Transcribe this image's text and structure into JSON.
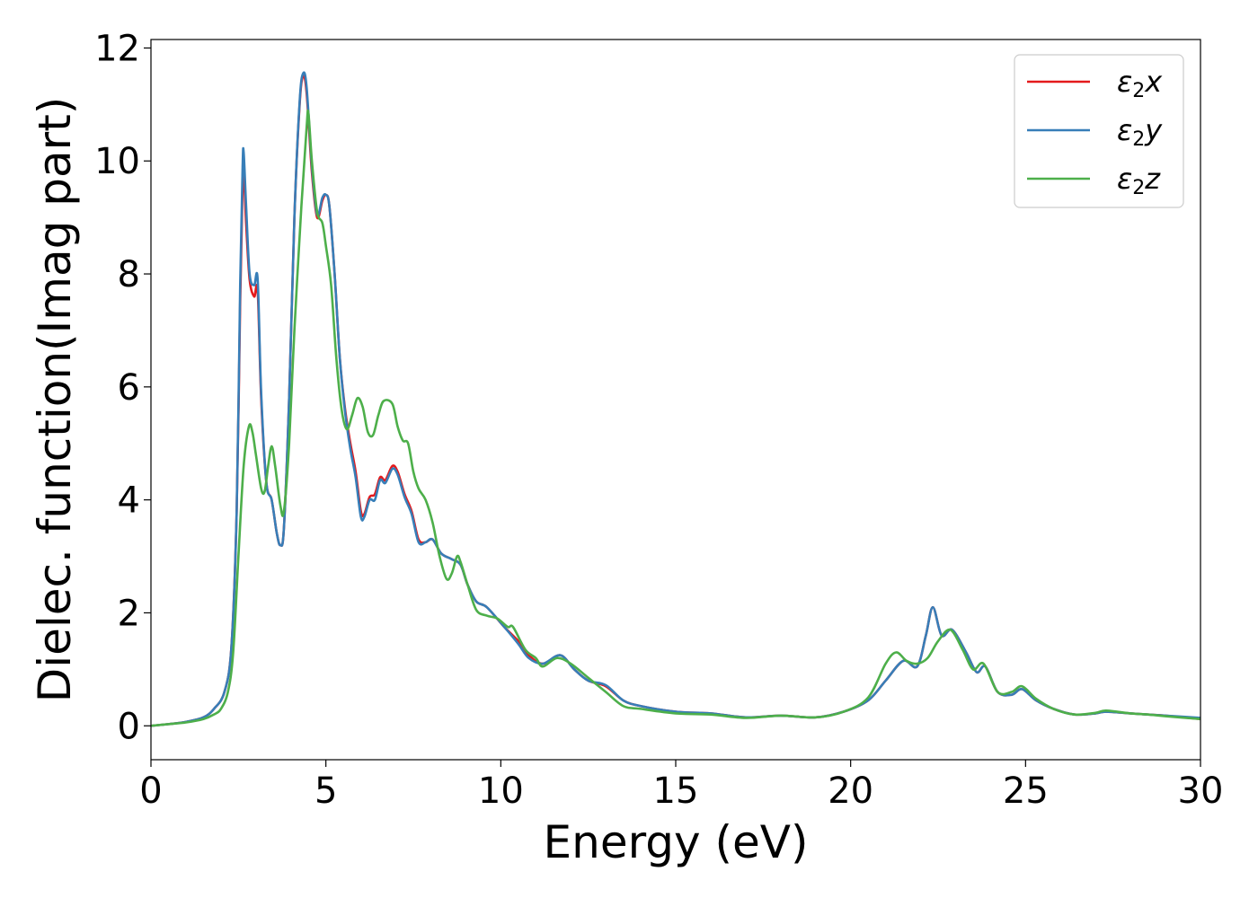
{
  "chart_data": {
    "type": "line",
    "xlabel": "Energy (eV)",
    "ylabel": "Dielec. function(Imag part)",
    "xlim": [
      0,
      30
    ],
    "ylim": [
      -0.6,
      12.15
    ],
    "xticks": [
      0,
      5,
      10,
      15,
      20,
      25,
      30
    ],
    "xtick_labels": [
      "0",
      "5",
      "10",
      "15",
      "20",
      "25",
      "30"
    ],
    "yticks": [
      0,
      2,
      4,
      6,
      8,
      10,
      12
    ],
    "ytick_labels": [
      "0",
      "2",
      "4",
      "6",
      "8",
      "10",
      "12"
    ],
    "grid": false,
    "legend_position": "top-right",
    "series": [
      {
        "name": "ε₂x",
        "legend_base": "ε",
        "legend_sub": "2",
        "legend_var": "x",
        "color": "#e41a1c",
        "points": [
          [
            0,
            0
          ],
          [
            0.5,
            0.03
          ],
          [
            1,
            0.07
          ],
          [
            1.5,
            0.15
          ],
          [
            1.8,
            0.3
          ],
          [
            2.1,
            0.6
          ],
          [
            2.3,
            1.4
          ],
          [
            2.45,
            3.8
          ],
          [
            2.55,
            7.5
          ],
          [
            2.62,
            9.6
          ],
          [
            2.65,
            9.9
          ],
          [
            2.72,
            8.9
          ],
          [
            2.82,
            7.9
          ],
          [
            2.95,
            7.6
          ],
          [
            3.05,
            7.7
          ],
          [
            3.15,
            5.8
          ],
          [
            3.3,
            4.3
          ],
          [
            3.45,
            4.0
          ],
          [
            3.6,
            3.4
          ],
          [
            3.7,
            3.2
          ],
          [
            3.8,
            3.5
          ],
          [
            3.95,
            5.8
          ],
          [
            4.1,
            9.0
          ],
          [
            4.25,
            11.0
          ],
          [
            4.35,
            11.5
          ],
          [
            4.45,
            11.2
          ],
          [
            4.6,
            9.8
          ],
          [
            4.75,
            9.0
          ],
          [
            4.9,
            9.3
          ],
          [
            5.0,
            9.4
          ],
          [
            5.1,
            9.2
          ],
          [
            5.25,
            8.0
          ],
          [
            5.4,
            6.5
          ],
          [
            5.55,
            5.6
          ],
          [
            5.7,
            5.0
          ],
          [
            5.85,
            4.5
          ],
          [
            6.0,
            3.8
          ],
          [
            6.1,
            3.75
          ],
          [
            6.25,
            4.05
          ],
          [
            6.4,
            4.1
          ],
          [
            6.55,
            4.4
          ],
          [
            6.7,
            4.35
          ],
          [
            6.9,
            4.6
          ],
          [
            7.05,
            4.5
          ],
          [
            7.25,
            4.1
          ],
          [
            7.45,
            3.8
          ],
          [
            7.65,
            3.3
          ],
          [
            7.85,
            3.25
          ],
          [
            8.05,
            3.3
          ],
          [
            8.3,
            3.05
          ],
          [
            8.6,
            2.95
          ],
          [
            8.85,
            2.85
          ],
          [
            9.05,
            2.5
          ],
          [
            9.3,
            2.2
          ],
          [
            9.6,
            2.1
          ],
          [
            10.1,
            1.75
          ],
          [
            10.5,
            1.5
          ],
          [
            10.8,
            1.25
          ],
          [
            11.2,
            1.1
          ],
          [
            11.7,
            1.25
          ],
          [
            12.1,
            1.0
          ],
          [
            12.5,
            0.8
          ],
          [
            13.0,
            0.7
          ],
          [
            13.5,
            0.45
          ],
          [
            14.0,
            0.35
          ],
          [
            15.0,
            0.25
          ],
          [
            16.0,
            0.22
          ],
          [
            17.0,
            0.15
          ],
          [
            18.0,
            0.18
          ],
          [
            19.0,
            0.15
          ],
          [
            19.8,
            0.25
          ],
          [
            20.5,
            0.45
          ],
          [
            21.0,
            0.8
          ],
          [
            21.5,
            1.15
          ],
          [
            21.9,
            1.05
          ],
          [
            22.15,
            1.6
          ],
          [
            22.35,
            2.1
          ],
          [
            22.6,
            1.6
          ],
          [
            22.9,
            1.7
          ],
          [
            23.3,
            1.3
          ],
          [
            23.6,
            0.95
          ],
          [
            23.85,
            1.05
          ],
          [
            24.2,
            0.6
          ],
          [
            24.6,
            0.55
          ],
          [
            24.9,
            0.65
          ],
          [
            25.3,
            0.45
          ],
          [
            25.8,
            0.3
          ],
          [
            26.4,
            0.2
          ],
          [
            27.0,
            0.22
          ],
          [
            27.3,
            0.25
          ],
          [
            28.0,
            0.22
          ],
          [
            28.5,
            0.2
          ],
          [
            29.0,
            0.18
          ],
          [
            30,
            0.12
          ]
        ]
      },
      {
        "name": "ε₂y",
        "legend_base": "ε",
        "legend_sub": "2",
        "legend_var": "y",
        "color": "#377eb8",
        "points": [
          [
            0,
            0
          ],
          [
            0.5,
            0.03
          ],
          [
            1,
            0.07
          ],
          [
            1.5,
            0.15
          ],
          [
            1.8,
            0.3
          ],
          [
            2.1,
            0.6
          ],
          [
            2.3,
            1.4
          ],
          [
            2.45,
            3.8
          ],
          [
            2.55,
            7.8
          ],
          [
            2.62,
            9.9
          ],
          [
            2.65,
            10.15
          ],
          [
            2.72,
            9.2
          ],
          [
            2.82,
            8.0
          ],
          [
            2.95,
            7.8
          ],
          [
            3.05,
            7.9
          ],
          [
            3.15,
            5.9
          ],
          [
            3.3,
            4.3
          ],
          [
            3.45,
            4.0
          ],
          [
            3.6,
            3.4
          ],
          [
            3.7,
            3.2
          ],
          [
            3.8,
            3.5
          ],
          [
            3.95,
            5.8
          ],
          [
            4.1,
            9.0
          ],
          [
            4.25,
            11.05
          ],
          [
            4.35,
            11.55
          ],
          [
            4.45,
            11.3
          ],
          [
            4.6,
            9.9
          ],
          [
            4.75,
            9.05
          ],
          [
            4.9,
            9.35
          ],
          [
            5.0,
            9.4
          ],
          [
            5.1,
            9.2
          ],
          [
            5.25,
            8.0
          ],
          [
            5.4,
            6.5
          ],
          [
            5.55,
            5.55
          ],
          [
            5.7,
            4.9
          ],
          [
            5.85,
            4.4
          ],
          [
            6.0,
            3.7
          ],
          [
            6.1,
            3.7
          ],
          [
            6.25,
            4.0
          ],
          [
            6.4,
            4.0
          ],
          [
            6.55,
            4.35
          ],
          [
            6.7,
            4.3
          ],
          [
            6.9,
            4.55
          ],
          [
            7.05,
            4.45
          ],
          [
            7.25,
            4.05
          ],
          [
            7.45,
            3.75
          ],
          [
            7.65,
            3.25
          ],
          [
            7.85,
            3.25
          ],
          [
            8.05,
            3.3
          ],
          [
            8.3,
            3.05
          ],
          [
            8.6,
            2.95
          ],
          [
            8.85,
            2.85
          ],
          [
            9.05,
            2.5
          ],
          [
            9.3,
            2.2
          ],
          [
            9.6,
            2.1
          ],
          [
            10.1,
            1.75
          ],
          [
            10.5,
            1.45
          ],
          [
            10.8,
            1.2
          ],
          [
            11.2,
            1.1
          ],
          [
            11.7,
            1.25
          ],
          [
            12.1,
            1.0
          ],
          [
            12.5,
            0.8
          ],
          [
            13.0,
            0.72
          ],
          [
            13.5,
            0.45
          ],
          [
            14.0,
            0.35
          ],
          [
            15.0,
            0.25
          ],
          [
            16.0,
            0.22
          ],
          [
            17.0,
            0.15
          ],
          [
            18.0,
            0.18
          ],
          [
            19.0,
            0.15
          ],
          [
            19.8,
            0.25
          ],
          [
            20.5,
            0.45
          ],
          [
            21.0,
            0.8
          ],
          [
            21.5,
            1.15
          ],
          [
            21.9,
            1.05
          ],
          [
            22.15,
            1.6
          ],
          [
            22.35,
            2.1
          ],
          [
            22.6,
            1.6
          ],
          [
            22.9,
            1.7
          ],
          [
            23.3,
            1.3
          ],
          [
            23.6,
            0.95
          ],
          [
            23.85,
            1.05
          ],
          [
            24.2,
            0.6
          ],
          [
            24.6,
            0.55
          ],
          [
            24.9,
            0.65
          ],
          [
            25.3,
            0.45
          ],
          [
            25.8,
            0.3
          ],
          [
            26.4,
            0.2
          ],
          [
            27.0,
            0.22
          ],
          [
            27.3,
            0.25
          ],
          [
            28.0,
            0.22
          ],
          [
            28.5,
            0.2
          ],
          [
            29.0,
            0.18
          ],
          [
            30,
            0.14
          ]
        ]
      },
      {
        "name": "ε₂z",
        "legend_base": "ε",
        "legend_sub": "2",
        "legend_var": "z",
        "color": "#4daf4a",
        "points": [
          [
            0,
            0
          ],
          [
            0.5,
            0.03
          ],
          [
            1,
            0.06
          ],
          [
            1.5,
            0.12
          ],
          [
            1.8,
            0.2
          ],
          [
            2.0,
            0.3
          ],
          [
            2.2,
            0.6
          ],
          [
            2.35,
            1.3
          ],
          [
            2.5,
            3.0
          ],
          [
            2.65,
            4.6
          ],
          [
            2.8,
            5.3
          ],
          [
            2.9,
            5.2
          ],
          [
            3.0,
            4.8
          ],
          [
            3.15,
            4.2
          ],
          [
            3.25,
            4.15
          ],
          [
            3.35,
            4.6
          ],
          [
            3.45,
            4.95
          ],
          [
            3.55,
            4.6
          ],
          [
            3.7,
            3.9
          ],
          [
            3.8,
            3.8
          ],
          [
            3.95,
            5.0
          ],
          [
            4.1,
            7.0
          ],
          [
            4.3,
            9.2
          ],
          [
            4.45,
            10.6
          ],
          [
            4.5,
            10.85
          ],
          [
            4.6,
            10.0
          ],
          [
            4.75,
            9.1
          ],
          [
            4.9,
            8.9
          ],
          [
            5.0,
            8.5
          ],
          [
            5.15,
            7.8
          ],
          [
            5.3,
            6.5
          ],
          [
            5.45,
            5.6
          ],
          [
            5.6,
            5.25
          ],
          [
            5.75,
            5.5
          ],
          [
            5.9,
            5.8
          ],
          [
            6.05,
            5.65
          ],
          [
            6.2,
            5.2
          ],
          [
            6.35,
            5.15
          ],
          [
            6.5,
            5.5
          ],
          [
            6.65,
            5.75
          ],
          [
            6.9,
            5.7
          ],
          [
            7.05,
            5.3
          ],
          [
            7.2,
            5.05
          ],
          [
            7.35,
            5.0
          ],
          [
            7.5,
            4.5
          ],
          [
            7.65,
            4.2
          ],
          [
            7.85,
            4.0
          ],
          [
            8.05,
            3.6
          ],
          [
            8.25,
            3.0
          ],
          [
            8.45,
            2.6
          ],
          [
            8.6,
            2.7
          ],
          [
            8.75,
            3.0
          ],
          [
            8.85,
            2.9
          ],
          [
            9.05,
            2.5
          ],
          [
            9.3,
            2.05
          ],
          [
            9.6,
            1.95
          ],
          [
            9.9,
            1.9
          ],
          [
            10.2,
            1.75
          ],
          [
            10.35,
            1.75
          ],
          [
            10.7,
            1.35
          ],
          [
            11.0,
            1.2
          ],
          [
            11.2,
            1.05
          ],
          [
            11.6,
            1.2
          ],
          [
            12.0,
            1.1
          ],
          [
            12.5,
            0.85
          ],
          [
            13.0,
            0.6
          ],
          [
            13.5,
            0.35
          ],
          [
            14.0,
            0.3
          ],
          [
            15.0,
            0.22
          ],
          [
            16.0,
            0.2
          ],
          [
            17.0,
            0.14
          ],
          [
            18.0,
            0.18
          ],
          [
            19.0,
            0.15
          ],
          [
            19.8,
            0.25
          ],
          [
            20.5,
            0.5
          ],
          [
            21.0,
            1.1
          ],
          [
            21.3,
            1.3
          ],
          [
            21.6,
            1.15
          ],
          [
            21.9,
            1.1
          ],
          [
            22.2,
            1.2
          ],
          [
            22.5,
            1.5
          ],
          [
            22.85,
            1.7
          ],
          [
            23.2,
            1.35
          ],
          [
            23.5,
            1.0
          ],
          [
            23.8,
            1.1
          ],
          [
            24.2,
            0.6
          ],
          [
            24.6,
            0.6
          ],
          [
            24.9,
            0.7
          ],
          [
            25.3,
            0.48
          ],
          [
            25.8,
            0.3
          ],
          [
            26.4,
            0.2
          ],
          [
            27.0,
            0.23
          ],
          [
            27.3,
            0.27
          ],
          [
            28.0,
            0.22
          ],
          [
            28.5,
            0.2
          ],
          [
            29.0,
            0.17
          ],
          [
            30,
            0.12
          ]
        ]
      }
    ]
  }
}
